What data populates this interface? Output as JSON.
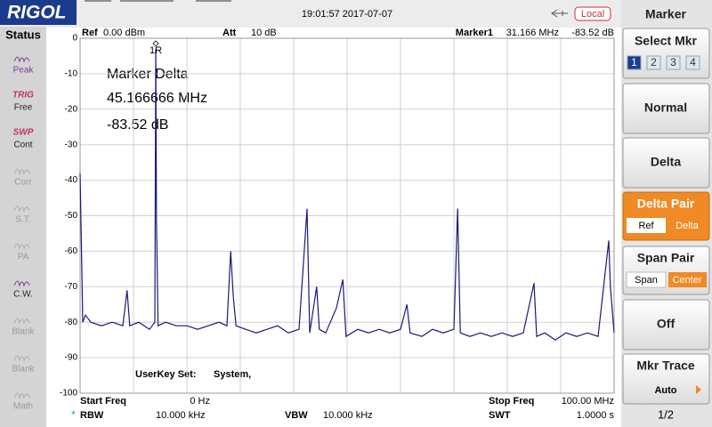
{
  "header": {
    "brand": "RIGOL",
    "datetime": "19:01:57 2017-07-07",
    "mode": "Local"
  },
  "status_panel": {
    "title": "Status",
    "items": [
      {
        "tag": "",
        "label": "Peak"
      },
      {
        "tag": "TRIG",
        "label": "Free"
      },
      {
        "tag": "SWP",
        "label": "Cont"
      },
      {
        "tag": "",
        "label": "Corr"
      },
      {
        "tag": "",
        "label": "S.T."
      },
      {
        "tag": "",
        "label": "PA"
      },
      {
        "tag": "",
        "label": "C.W."
      },
      {
        "tag": "",
        "label": "Blank"
      },
      {
        "tag": "",
        "label": "Blank"
      },
      {
        "tag": "",
        "label": "Math"
      }
    ]
  },
  "info_top": {
    "ref_label": "Ref",
    "ref_value": "0.00 dBm",
    "att_label": "Att",
    "att_value": "10 dB",
    "marker_label": "Marker1",
    "marker_freq": "31.166 MHz",
    "marker_amp": "-83.52 dB"
  },
  "info_bottom": {
    "start_label": "Start Freq",
    "start_value": "0 Hz",
    "stop_label": "Stop Freq",
    "stop_value": "100.00 MHz",
    "rbw_label": "RBW",
    "rbw_value": "10.000 kHz",
    "vbw_label": "VBW",
    "vbw_value": "10.000 kHz",
    "swt_label": "SWT",
    "swt_value": "1.0000 s",
    "userkey_label": "UserKey Set:",
    "userkey_value": "System,"
  },
  "menu": {
    "title": "Marker",
    "select_mkr": "Select Mkr",
    "markers": [
      "1",
      "2",
      "3",
      "4"
    ],
    "normal": "Normal",
    "delta": "Delta",
    "delta_pair": "Delta Pair",
    "delta_pair_options": [
      "Ref",
      "Delta"
    ],
    "span_pair": "Span Pair",
    "span_pair_options": [
      "Span",
      "Center"
    ],
    "off": "Off",
    "mkr_trace": "Mkr Trace",
    "mkr_trace_value": "Auto",
    "page": "1/2"
  },
  "chart_data": {
    "type": "line",
    "color": "#1a1a7a",
    "grid": true,
    "annotations": [
      "Marker Delta",
      "45.166666 MHz",
      "-83.52 dB"
    ],
    "marker_label": "1R",
    "xlim": [
      0,
      100
    ],
    "xticks": [
      0,
      10,
      20,
      30,
      40,
      50,
      60,
      70,
      80,
      90,
      100
    ],
    "ylim": [
      -100,
      0
    ],
    "yticks": [
      0,
      -10,
      -20,
      -30,
      -40,
      -50,
      -60,
      -70,
      -80,
      -90,
      -100
    ],
    "x": [
      0,
      0.5,
      1,
      2,
      4,
      6,
      8,
      8.8,
      9.3,
      11,
      13,
      14,
      14.17,
      14.3,
      14.6,
      16,
      18,
      20,
      22,
      24,
      26,
      27.5,
      28.2,
      28.7,
      29.2,
      31,
      33,
      35,
      37,
      39,
      41,
      42.5,
      43,
      44.3,
      44.8,
      46,
      48,
      49.2,
      49.8,
      52,
      54,
      56,
      58,
      60,
      61.2,
      61.8,
      64,
      66,
      68,
      70,
      70.7,
      71.2,
      73,
      75,
      77,
      79,
      81,
      83,
      85,
      85.5,
      87,
      89,
      91,
      93,
      95,
      97,
      99,
      99.3,
      100
    ],
    "values": [
      -38,
      -80,
      -78,
      -80,
      -81,
      -80,
      -81,
      -71,
      -81,
      -80,
      -82,
      -80,
      -3,
      -51,
      -81,
      -80,
      -81,
      -81,
      -82,
      -81,
      -80,
      -81,
      -60,
      -73,
      -81,
      -82,
      -83,
      -82,
      -81,
      -83,
      -82,
      -48,
      -83,
      -70,
      -82,
      -83,
      -76,
      -68,
      -84,
      -82,
      -83,
      -82,
      -83,
      -82,
      -75,
      -83,
      -84,
      -82,
      -83,
      -82,
      -48,
      -83,
      -84,
      -83,
      -84,
      -83,
      -84,
      -83,
      -69,
      -84,
      -83,
      -85,
      -83,
      -84,
      -83,
      -84,
      -57,
      -70,
      -83
    ]
  }
}
